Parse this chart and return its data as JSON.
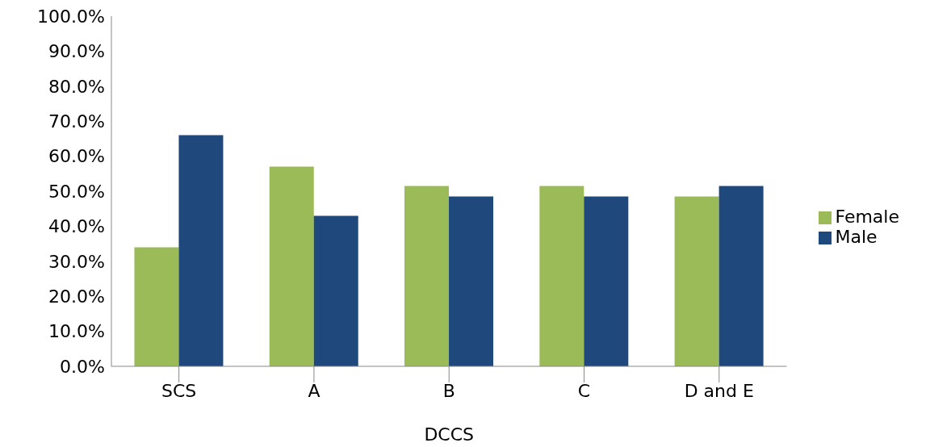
{
  "chart_data": {
    "type": "bar",
    "xlabel": "DCCS",
    "categories": [
      "SCS",
      "A",
      "B",
      "C",
      "D and E"
    ],
    "series": [
      {
        "name": "Female",
        "color": "#9bbb59",
        "values": [
          34.0,
          57.0,
          51.5,
          51.5,
          48.5
        ]
      },
      {
        "name": "Male",
        "color": "#1f497d",
        "values": [
          66.0,
          43.0,
          48.5,
          48.5,
          51.5
        ]
      }
    ],
    "ylim": [
      0,
      100
    ],
    "yticks": [
      {
        "value": 0,
        "label": "0.0%"
      },
      {
        "value": 10,
        "label": "10.0%"
      },
      {
        "value": 20,
        "label": "20.0%"
      },
      {
        "value": 30,
        "label": "30.0%"
      },
      {
        "value": 40,
        "label": "40.0%"
      },
      {
        "value": 50,
        "label": "50.0%"
      },
      {
        "value": 60,
        "label": "60.0%"
      },
      {
        "value": 70,
        "label": "70.0%"
      },
      {
        "value": 80,
        "label": "80.0%"
      },
      {
        "value": 90,
        "label": "90.0%"
      },
      {
        "value": 100,
        "label": "100.0%"
      }
    ],
    "grid": false,
    "legend": "right"
  }
}
